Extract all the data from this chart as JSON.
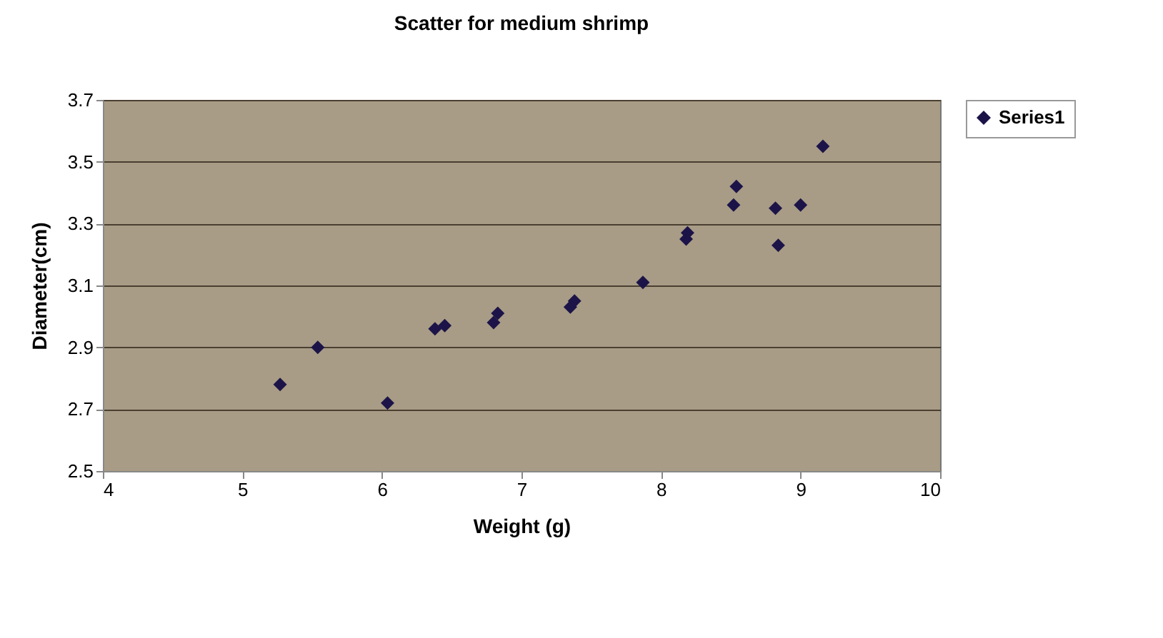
{
  "chart_data": {
    "type": "scatter",
    "title": "Scatter for medium shrimp",
    "xlabel": "Weight (g)",
    "ylabel": "Diameter(cm)",
    "x": [
      5.27,
      5.54,
      6.04,
      6.38,
      6.45,
      6.8,
      6.83,
      7.35,
      7.38,
      7.87,
      8.18,
      8.19,
      8.52,
      8.54,
      8.82,
      8.84,
      9.0,
      9.16
    ],
    "series": [
      {
        "name": "Series1",
        "color": "#1c1448",
        "values": [
          2.78,
          2.9,
          2.72,
          2.96,
          2.97,
          2.98,
          3.01,
          3.03,
          3.05,
          3.11,
          3.25,
          3.27,
          3.36,
          3.42,
          3.35,
          3.23,
          3.36,
          3.55
        ]
      }
    ],
    "xlim": [
      4,
      10
    ],
    "xticks": [
      4,
      5,
      6,
      7,
      8,
      9,
      10
    ],
    "ylim": [
      2.5,
      3.7
    ],
    "yticks": [
      2.5,
      2.7,
      2.9,
      3.1,
      3.3,
      3.5,
      3.7
    ],
    "grid": "y",
    "legend": "right",
    "marker": "diamond"
  }
}
